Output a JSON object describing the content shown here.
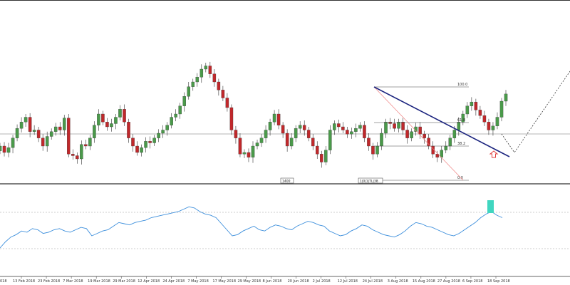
{
  "colors": {
    "bull": "#4a9a4a",
    "bear": "#c0282b",
    "wick": "#333333",
    "trendline": "#1a237e",
    "fib": "#444444",
    "oscillator": "#3d8fdc",
    "accent_box": "#40d6c0",
    "arrow": "#e04040",
    "projection": "#333333",
    "gridline": "#9e9e9e",
    "divider": "#333333"
  },
  "icons": {
    "signal_arrow": "up-arrow-outline-icon"
  },
  "markers": {
    "m1": "1400",
    "m2": "1|0|1|TL|38"
  },
  "fib_levels": [
    {
      "label": "100.0",
      "value": 100
    },
    {
      "label": "61.8",
      "value": 61.8
    },
    {
      "label": "38.2",
      "value": 38.2
    },
    {
      "label": "0.0",
      "value": 0
    }
  ],
  "chart_data": [
    {
      "type": "candlestick",
      "title": "",
      "xlabel": "",
      "ylabel": "",
      "x_tick_labels": [
        "13 Feb 2018",
        "23 Feb 2018",
        "7 Mar 2018",
        "19 Mar 2018",
        "29 Mar 2018",
        "12 Apr 2018",
        "24 Apr 2018",
        "7 May 2018",
        "17 May 2018",
        "29 May 2018",
        "8 Jun 2018",
        "20 Jun 2018",
        "2 Jul 2018",
        "12 Jul 2018",
        "24 Jul 2018",
        "3 Aug 2018",
        "15 Aug 2018",
        "27 Aug 2018",
        "6 Sep 2018",
        "18 Sep 2018"
      ],
      "x_tick_first_partial": "018",
      "closes": [
        140,
        132,
        138,
        150,
        162,
        170,
        176,
        158,
        160,
        150,
        140,
        152,
        158,
        164,
        160,
        175,
        130,
        128,
        124,
        142,
        140,
        150,
        166,
        180,
        170,
        164,
        168,
        176,
        186,
        170,
        150,
        140,
        132,
        138,
        146,
        144,
        150,
        156,
        160,
        166,
        176,
        180,
        190,
        202,
        214,
        220,
        226,
        236,
        240,
        230,
        220,
        210,
        200,
        188,
        160,
        150,
        130,
        132,
        126,
        140,
        144,
        150,
        160,
        170,
        180,
        166,
        156,
        140,
        150,
        162,
        166,
        160,
        150,
        140,
        130,
        120,
        135,
        160,
        168,
        164,
        160,
        155,
        158,
        162,
        166,
        150,
        140,
        130,
        140,
        156,
        170,
        168,
        162,
        170,
        160,
        150,
        158,
        164,
        155,
        150,
        140,
        130,
        126,
        135,
        140,
        150,
        160,
        170,
        180,
        190,
        195,
        185,
        178,
        170,
        160,
        165,
        176,
        196,
        205
      ]
    },
    {
      "type": "line",
      "title": "",
      "series": [
        {
          "values": [
            20,
            30,
            38,
            42,
            48,
            46,
            52,
            50,
            44,
            46,
            50,
            52,
            48,
            46,
            50,
            54,
            52,
            40,
            44,
            48,
            50,
            56,
            62,
            60,
            58,
            62,
            64,
            66,
            70,
            72,
            74,
            76,
            78,
            80,
            84,
            88,
            86,
            80,
            76,
            74,
            70,
            60,
            50,
            40,
            42,
            48,
            52,
            56,
            50,
            48,
            54,
            58,
            56,
            52,
            50,
            56,
            60,
            64,
            62,
            58,
            56,
            48,
            44,
            40,
            42,
            48,
            52,
            58,
            56,
            50,
            46,
            42,
            40,
            38,
            42,
            48,
            56,
            62,
            60,
            56,
            54,
            50,
            46,
            42,
            40,
            44,
            50,
            56,
            62,
            70,
            76,
            80,
            74,
            70
          ]
        }
      ]
    }
  ]
}
